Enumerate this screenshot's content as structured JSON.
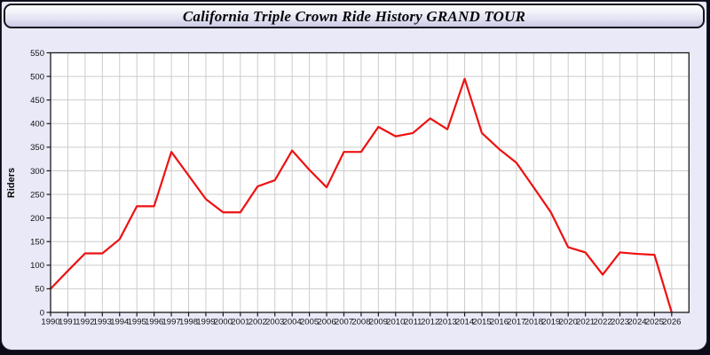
{
  "window": {
    "title": "California Triple Crown Ride History GRAND TOUR"
  },
  "colors": {
    "page_background": "#e9e9f8",
    "outer_frame": "#0c0c18",
    "titlebar_border": "#15151f",
    "plot_background": "#ffffff",
    "plot_frame": "#1a1a1a",
    "gridline": "#cccccc",
    "tick_text": "#111111",
    "line": "#ee1111"
  },
  "chart_data": {
    "type": "line",
    "title": "California Triple Crown Ride History GRAND TOUR",
    "xlabel": "",
    "ylabel": "Riders",
    "x": [
      1990,
      1991,
      1992,
      1993,
      1994,
      1995,
      1996,
      1997,
      1998,
      1999,
      2000,
      2001,
      2002,
      2003,
      2004,
      2005,
      2006,
      2007,
      2008,
      2009,
      2010,
      2011,
      2012,
      2013,
      2014,
      2015,
      2016,
      2017,
      2018,
      2019,
      2020,
      2021,
      2022,
      2023,
      2024,
      2025,
      2026
    ],
    "series": [
      {
        "name": "Riders",
        "color": "#ee1111",
        "values": [
          50,
          88,
          125,
          125,
          155,
          225,
          225,
          340,
          290,
          240,
          212,
          212,
          267,
          280,
          343,
          302,
          265,
          340,
          340,
          393,
          373,
          380,
          411,
          388,
          495,
          380,
          346,
          317,
          265,
          212,
          138,
          127,
          80,
          127,
          124,
          122,
          0
        ]
      }
    ],
    "ylim": [
      0,
      550
    ],
    "ytick_step": 50,
    "grid": true,
    "legend": false
  }
}
